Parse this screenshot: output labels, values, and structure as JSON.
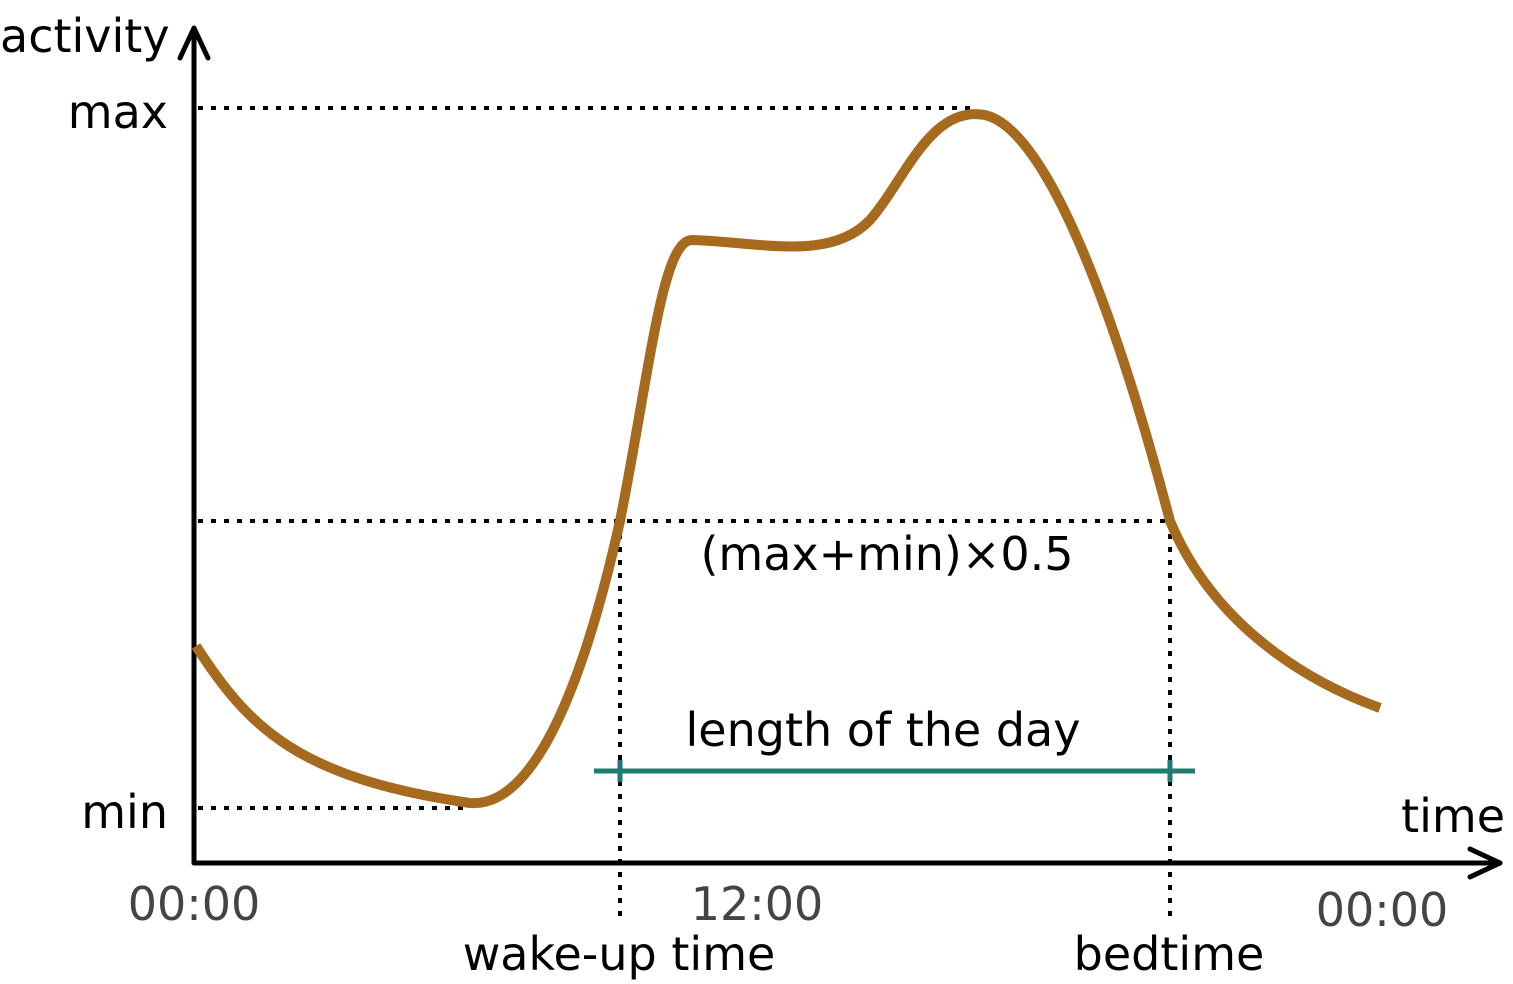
{
  "axes": {
    "y_label": "activity",
    "x_label": "time",
    "y_level_max": "max",
    "y_level_min": "min",
    "x_ticks": [
      "00:00",
      "12:00",
      "00:00"
    ]
  },
  "annotations": {
    "midline_formula": "(max+min)×0.5",
    "day_length": "length of the day",
    "wake_up": "wake-up time",
    "bedtime": "bedtime"
  },
  "colors": {
    "curve": "#a56a1e",
    "day_span": "#1f7a72",
    "axis": "#000000",
    "tick_text": "#444444"
  }
}
